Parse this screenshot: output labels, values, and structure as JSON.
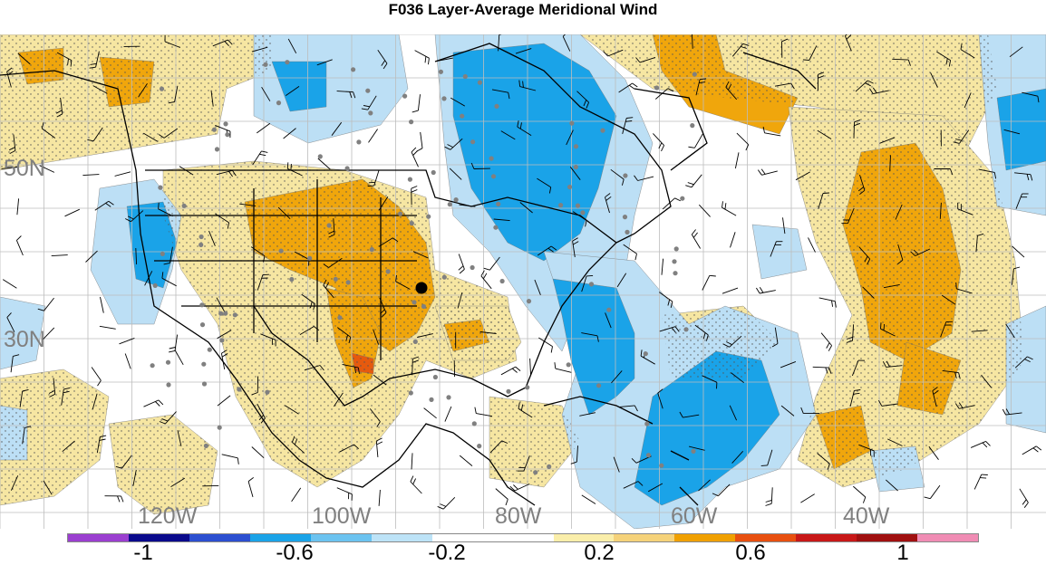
{
  "title": "F036 Layer-Average Meridional Wind",
  "lat_labels": [
    "50N",
    "30N"
  ],
  "lon_labels": [
    "120W",
    "100W",
    "80W",
    "60W",
    "40W"
  ],
  "colorbar": {
    "colors": [
      "#9b3fd0",
      "#0a0a8c",
      "#2c4fd0",
      "#1aa3e8",
      "#6cc3f0",
      "#bde3f7",
      "#ffffff",
      "#ffffff",
      "#faeeaa",
      "#f5d27a",
      "#f0a000",
      "#e85010",
      "#c81818",
      "#a01010",
      "#f08cb4"
    ],
    "tick_labels": [
      "-1",
      "-0.6",
      "-0.2",
      "0.2",
      "0.6",
      "1"
    ]
  },
  "palette": {
    "positive_light": "#f6e6a2",
    "positive_mid": "#f0a60c",
    "positive_strong": "#e65a0e",
    "positive_max": "#d22a0e",
    "negative_light": "#bcdff5",
    "negative_mid": "#1aa3e8",
    "gridline": "#bdbdbd",
    "coast": "#000000",
    "station_dot": "#808080"
  }
}
